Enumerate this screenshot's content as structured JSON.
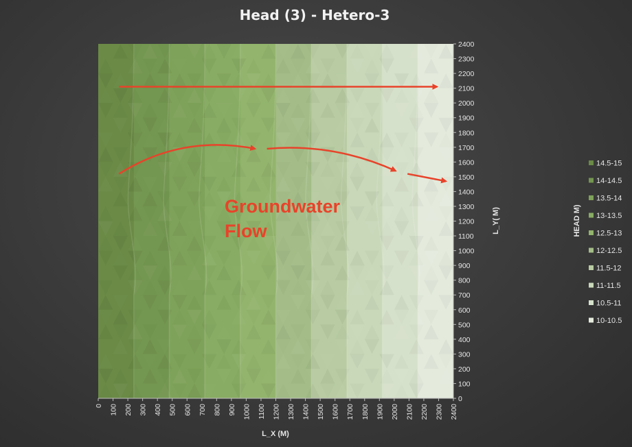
{
  "chart_data": {
    "type": "heatmap",
    "title": "Head (3) - Hetero-3",
    "xlabel": "L_X (M)",
    "ylabel": "L_Y( M)",
    "legend_title": "HEAD M)",
    "x_ticks": [
      "0",
      "100",
      "200",
      "300",
      "400",
      "500",
      "600",
      "700",
      "800",
      "900",
      "1000",
      "1100",
      "1200",
      "1300",
      "1400",
      "1500",
      "1600",
      "1700",
      "1800",
      "1900",
      "2000",
      "2100",
      "2200",
      "2300",
      "2400"
    ],
    "y_ticks": [
      "0",
      "100",
      "200",
      "300",
      "400",
      "500",
      "600",
      "700",
      "800",
      "900",
      "1000",
      "1100",
      "1200",
      "1300",
      "1400",
      "1500",
      "1600",
      "1700",
      "1800",
      "1900",
      "2000",
      "2100",
      "2200",
      "2300",
      "2400"
    ],
    "xlim": [
      0,
      2400
    ],
    "ylim": [
      0,
      2400
    ],
    "legend": [
      {
        "label": "14.5-15",
        "color": "#6a8a46"
      },
      {
        "label": "14-14.5",
        "color": "#739650"
      },
      {
        "label": "13.5-14",
        "color": "#7ea259"
      },
      {
        "label": "13-13.5",
        "color": "#88ac63"
      },
      {
        "label": "12.5-13",
        "color": "#92b46c"
      },
      {
        "label": "12-12.5",
        "color": "#a4bd88"
      },
      {
        "label": "11.5-12",
        "color": "#b8cba2"
      },
      {
        "label": "11-11.5",
        "color": "#c9d8b9"
      },
      {
        "label": "10.5-11",
        "color": "#d6e1cb"
      },
      {
        "label": "10-10.5",
        "color": "#e4ebdd"
      }
    ],
    "head_bands": [
      {
        "x_range": [
          0,
          240
        ],
        "range": "14.5-15"
      },
      {
        "x_range": [
          240,
          480
        ],
        "range": "14-14.5"
      },
      {
        "x_range": [
          480,
          720
        ],
        "range": "13.5-14"
      },
      {
        "x_range": [
          720,
          960
        ],
        "range": "13-13.5"
      },
      {
        "x_range": [
          960,
          1200
        ],
        "range": "12.5-13"
      },
      {
        "x_range": [
          1200,
          1440
        ],
        "range": "12-12.5"
      },
      {
        "x_range": [
          1440,
          1680
        ],
        "range": "11.5-12"
      },
      {
        "x_range": [
          1680,
          1920
        ],
        "range": "11-11.5"
      },
      {
        "x_range": [
          1920,
          2160
        ],
        "range": "10.5-11"
      },
      {
        "x_range": [
          2160,
          2400
        ],
        "range": "10-10.5"
      }
    ],
    "annotation": {
      "lines": [
        "Groundwater",
        "Flow"
      ],
      "color": "#e8432a"
    },
    "flow_arrows": [
      {
        "from": [
          140,
          2110
        ],
        "to": [
          2290,
          2110
        ],
        "curve": 0
      },
      {
        "from": [
          140,
          1520
        ],
        "to": [
          1060,
          1690
        ],
        "curve": 40
      },
      {
        "from": [
          1140,
          1690
        ],
        "to": [
          2010,
          1540
        ],
        "curve": 25
      },
      {
        "from": [
          2090,
          1520
        ],
        "to": [
          2350,
          1470
        ],
        "curve": 0
      }
    ]
  }
}
